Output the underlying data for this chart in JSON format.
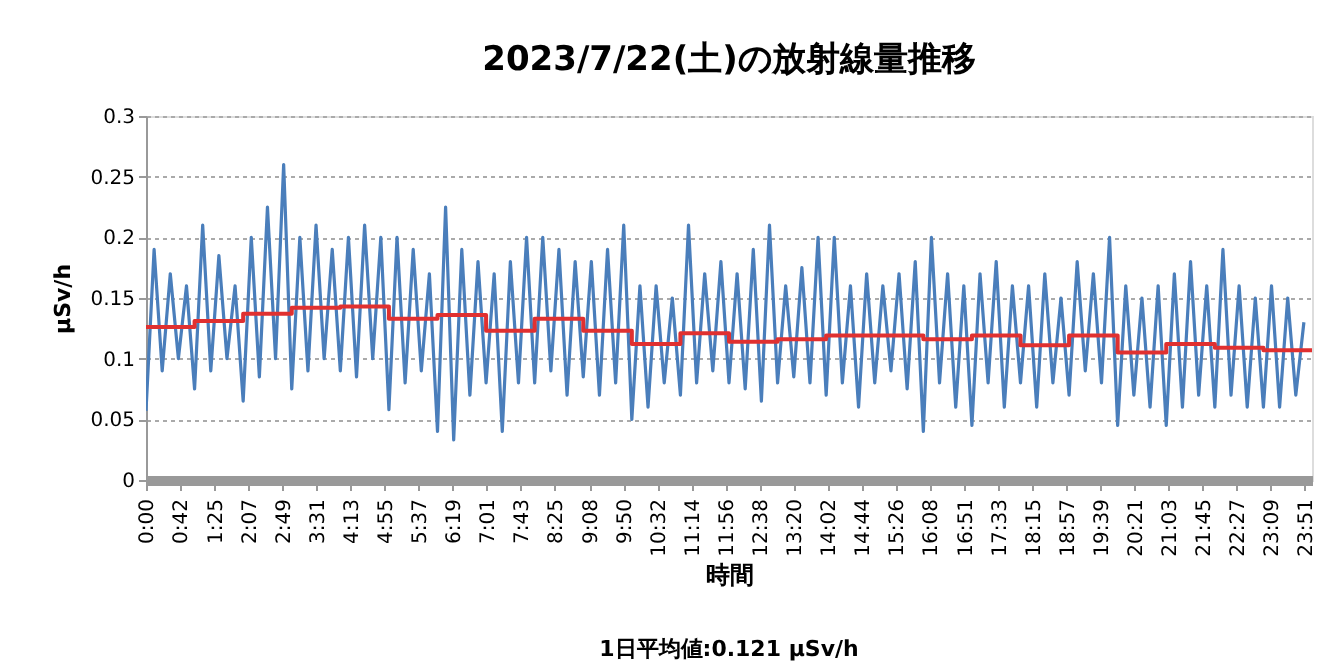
{
  "chart_data": {
    "type": "line",
    "title": "2023/7/22(土)の放射線量推移",
    "xlabel": "時間",
    "ylabel": "μSv/h",
    "annotations": [
      "1日平均値:0.121 μSv/h"
    ],
    "xlim": [
      0,
      24
    ],
    "ylim": [
      0,
      0.3
    ],
    "yticks": [
      0,
      0.05,
      0.1,
      0.15,
      0.2,
      0.25,
      0.3
    ],
    "xticks": [
      {
        "value": 0,
        "label": "0:00"
      },
      {
        "value": 0.7,
        "label": "0:42"
      },
      {
        "value": 1.4167,
        "label": "1:25"
      },
      {
        "value": 2.1167,
        "label": "2:07"
      },
      {
        "value": 2.8167,
        "label": "2:49"
      },
      {
        "value": 3.5167,
        "label": "3:31"
      },
      {
        "value": 4.2167,
        "label": "4:13"
      },
      {
        "value": 4.9167,
        "label": "4:55"
      },
      {
        "value": 5.6167,
        "label": "5:37"
      },
      {
        "value": 6.3167,
        "label": "6:19"
      },
      {
        "value": 7.0167,
        "label": "7:01"
      },
      {
        "value": 7.7167,
        "label": "7:43"
      },
      {
        "value": 8.4167,
        "label": "8:25"
      },
      {
        "value": 9.1333,
        "label": "9:08"
      },
      {
        "value": 9.8333,
        "label": "9:50"
      },
      {
        "value": 10.5333,
        "label": "10:32"
      },
      {
        "value": 11.2333,
        "label": "11:14"
      },
      {
        "value": 11.9333,
        "label": "11:56"
      },
      {
        "value": 12.6333,
        "label": "12:38"
      },
      {
        "value": 13.3333,
        "label": "13:20"
      },
      {
        "value": 14.0333,
        "label": "14:02"
      },
      {
        "value": 14.7333,
        "label": "14:44"
      },
      {
        "value": 15.4333,
        "label": "15:26"
      },
      {
        "value": 16.1333,
        "label": "16:08"
      },
      {
        "value": 16.85,
        "label": "16:51"
      },
      {
        "value": 17.55,
        "label": "17:33"
      },
      {
        "value": 18.25,
        "label": "18:15"
      },
      {
        "value": 18.95,
        "label": "18:57"
      },
      {
        "value": 19.65,
        "label": "19:39"
      },
      {
        "value": 20.35,
        "label": "20:21"
      },
      {
        "value": 21.05,
        "label": "21:03"
      },
      {
        "value": 21.75,
        "label": "21:45"
      },
      {
        "value": 22.45,
        "label": "22:27"
      },
      {
        "value": 23.15,
        "label": "23:09"
      },
      {
        "value": 23.85,
        "label": "23:51"
      }
    ],
    "grid": "y",
    "series": [
      {
        "color": "#4a7ebb",
        "x": [
          0,
          0.1667,
          0.3333,
          0.5,
          0.6667,
          0.8333,
          1,
          1.1667,
          1.3333,
          1.5,
          1.6667,
          1.8333,
          2,
          2.1667,
          2.3333,
          2.5,
          2.6667,
          2.8333,
          3,
          3.1667,
          3.3333,
          3.5,
          3.6667,
          3.8333,
          4,
          4.1667,
          4.3333,
          4.5,
          4.6667,
          4.8333,
          5,
          5.1667,
          5.3333,
          5.5,
          5.6667,
          5.8333,
          6,
          6.1667,
          6.3333,
          6.5,
          6.6667,
          6.8333,
          7,
          7.1667,
          7.3333,
          7.5,
          7.6667,
          7.8333,
          8,
          8.1667,
          8.3333,
          8.5,
          8.6667,
          8.8333,
          9,
          9.1667,
          9.3333,
          9.5,
          9.6667,
          9.8333,
          10,
          10.1667,
          10.3333,
          10.5,
          10.6667,
          10.8333,
          11,
          11.1667,
          11.3333,
          11.5,
          11.6667,
          11.8333,
          12,
          12.1667,
          12.3333,
          12.5,
          12.6667,
          12.8333,
          13,
          13.1667,
          13.3333,
          13.5,
          13.6667,
          13.8333,
          14,
          14.1667,
          14.3333,
          14.5,
          14.6667,
          14.8333,
          15,
          15.1667,
          15.3333,
          15.5,
          15.6667,
          15.8333,
          16,
          16.1667,
          16.3333,
          16.5,
          16.6667,
          16.8333,
          17,
          17.1667,
          17.3333,
          17.5,
          17.6667,
          17.8333,
          18,
          18.1667,
          18.3333,
          18.5,
          18.6667,
          18.8333,
          19,
          19.1667,
          19.3333,
          19.5,
          19.6667,
          19.8333,
          20,
          20.1667,
          20.3333,
          20.5,
          20.6667,
          20.8333,
          21,
          21.1667,
          21.3333,
          21.5,
          21.6667,
          21.8333,
          22,
          22.1667,
          22.3333,
          22.5,
          22.6667,
          22.8333,
          23,
          23.1667,
          23.3333,
          23.5,
          23.6667,
          23.8333
        ],
        "values": [
          0.057,
          0.19,
          0.09,
          0.17,
          0.1,
          0.16,
          0.075,
          0.21,
          0.09,
          0.185,
          0.1,
          0.16,
          0.065,
          0.2,
          0.085,
          0.225,
          0.1,
          0.26,
          0.075,
          0.2,
          0.09,
          0.21,
          0.1,
          0.19,
          0.09,
          0.2,
          0.085,
          0.21,
          0.1,
          0.2,
          0.058,
          0.2,
          0.08,
          0.19,
          0.09,
          0.17,
          0.04,
          0.225,
          0.033,
          0.19,
          0.07,
          0.18,
          0.08,
          0.17,
          0.04,
          0.18,
          0.08,
          0.2,
          0.08,
          0.2,
          0.09,
          0.19,
          0.07,
          0.18,
          0.085,
          0.18,
          0.07,
          0.19,
          0.08,
          0.21,
          0.05,
          0.16,
          0.06,
          0.16,
          0.08,
          0.15,
          0.07,
          0.21,
          0.08,
          0.17,
          0.09,
          0.18,
          0.08,
          0.17,
          0.075,
          0.19,
          0.065,
          0.21,
          0.08,
          0.16,
          0.085,
          0.175,
          0.08,
          0.2,
          0.07,
          0.2,
          0.08,
          0.16,
          0.06,
          0.17,
          0.08,
          0.16,
          0.09,
          0.17,
          0.075,
          0.18,
          0.04,
          0.2,
          0.08,
          0.17,
          0.06,
          0.16,
          0.045,
          0.17,
          0.08,
          0.18,
          0.06,
          0.16,
          0.08,
          0.16,
          0.06,
          0.17,
          0.08,
          0.15,
          0.07,
          0.18,
          0.09,
          0.17,
          0.08,
          0.2,
          0.045,
          0.16,
          0.07,
          0.15,
          0.06,
          0.16,
          0.045,
          0.17,
          0.06,
          0.18,
          0.07,
          0.16,
          0.06,
          0.19,
          0.07,
          0.16,
          0.06,
          0.15,
          0.06,
          0.16,
          0.06,
          0.15,
          0.07,
          0.13
        ]
      },
      {
        "type": "step",
        "color": "#e03030",
        "x": [
          0,
          1,
          2,
          3,
          4,
          5,
          6,
          7,
          8,
          9,
          10,
          11,
          12,
          13,
          14,
          15,
          16,
          17,
          18,
          19,
          20,
          21,
          22,
          23,
          24
        ],
        "values": [
          0.126,
          0.131,
          0.137,
          0.142,
          0.143,
          0.133,
          0.136,
          0.123,
          0.133,
          0.123,
          0.112,
          0.121,
          0.114,
          0.116,
          0.119,
          0.119,
          0.116,
          0.119,
          0.111,
          0.119,
          0.105,
          0.112,
          0.109,
          0.107,
          0.107
        ]
      }
    ]
  }
}
